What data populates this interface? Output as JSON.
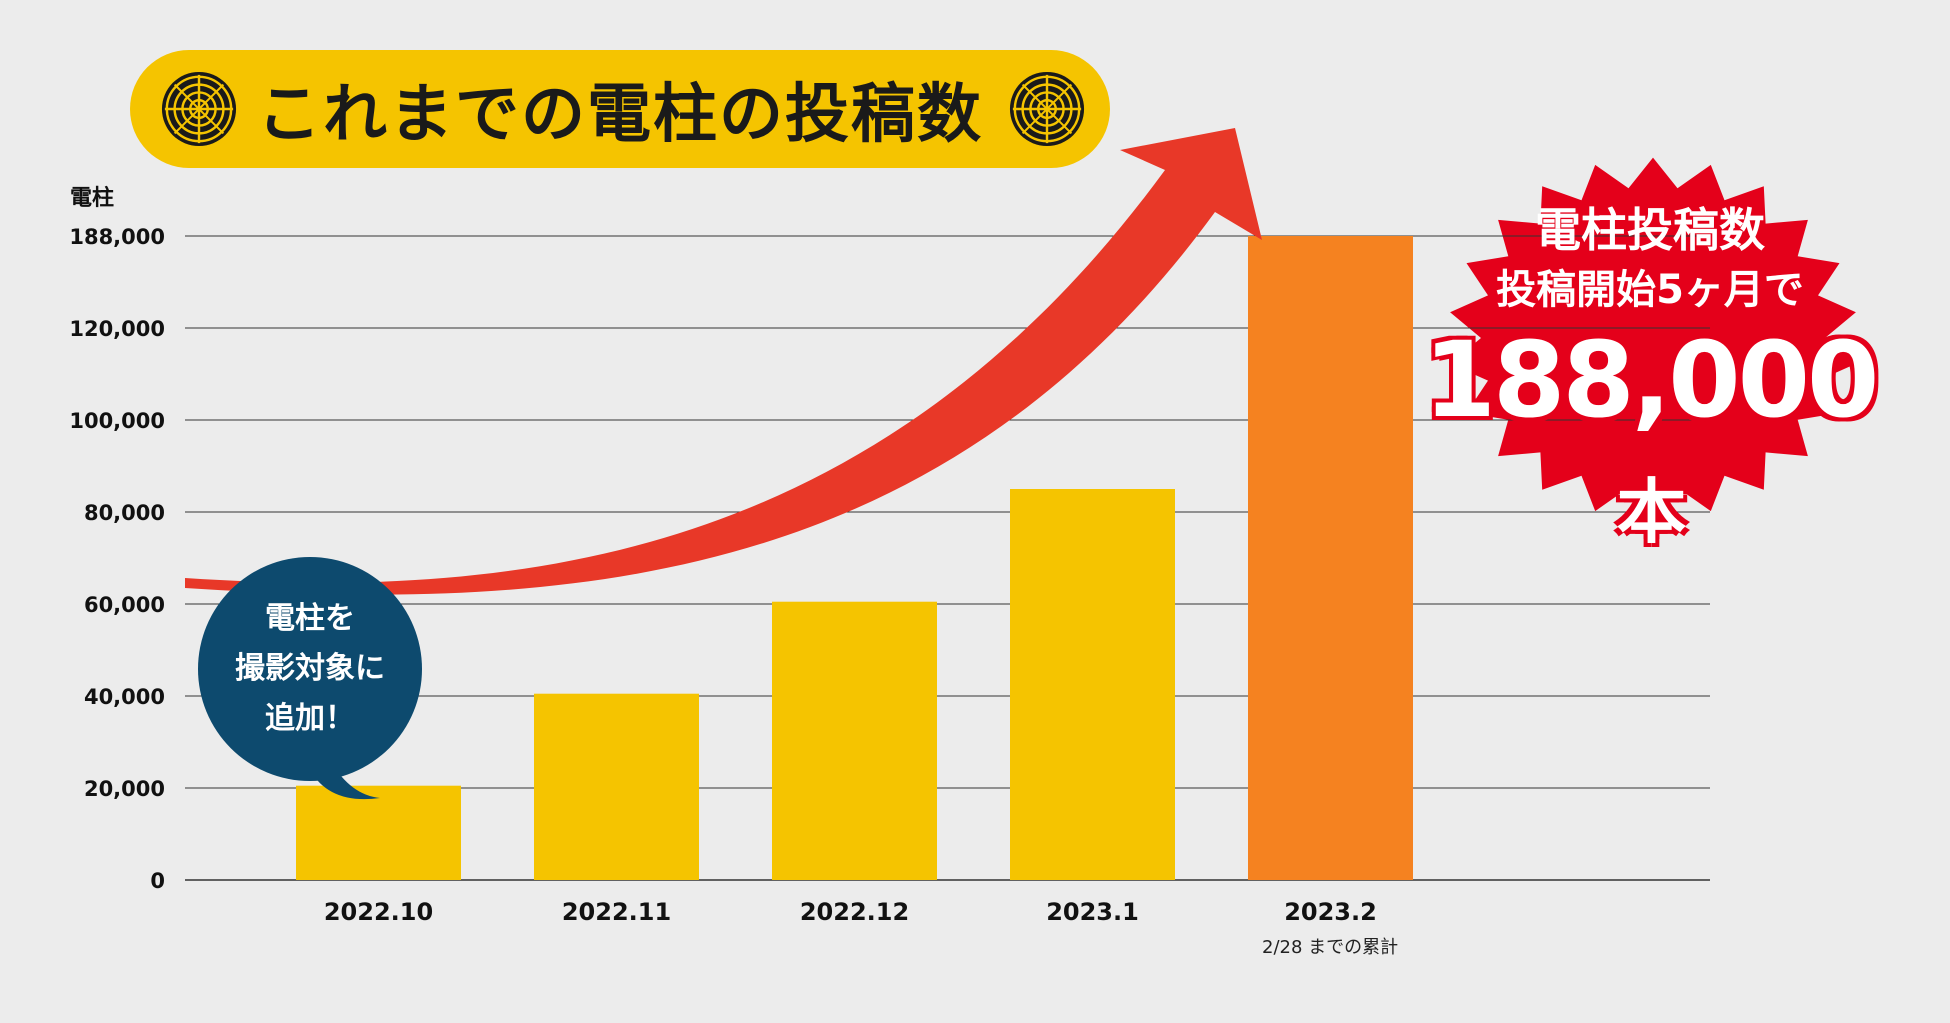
{
  "title": "これまでの電柱の投稿数",
  "burst": {
    "line1": "電柱投稿数",
    "line2": "投稿開始5ヶ月で",
    "value": "188,000",
    "unit": "本"
  },
  "bubble": {
    "line1": "電柱を",
    "line2": "撮影対象に",
    "line3": "追加！"
  },
  "colors": {
    "bar": "#f5c400",
    "bar_highlight": "#f58220",
    "arrow": "#e83828",
    "burst": "#e4001a",
    "bubble": "#0d4a6e",
    "grid": "#333333"
  },
  "chart_data": {
    "type": "bar",
    "ylabel": "電柱",
    "categories": [
      "2022.10",
      "2022.11",
      "2022.12",
      "2023.1",
      "2023.2"
    ],
    "values": [
      20500,
      40500,
      60500,
      85000,
      188000
    ],
    "highlight_index": 4,
    "y_ticks": [
      0,
      20000,
      40000,
      60000,
      80000,
      100000,
      120000,
      188000
    ],
    "y_tick_labels": [
      "0",
      "20,000",
      "40,000",
      "60,000",
      "80,000",
      "100,000",
      "120,000",
      "188,000"
    ],
    "note": "2/28 までの累計",
    "grid": true,
    "axis_break": true
  }
}
